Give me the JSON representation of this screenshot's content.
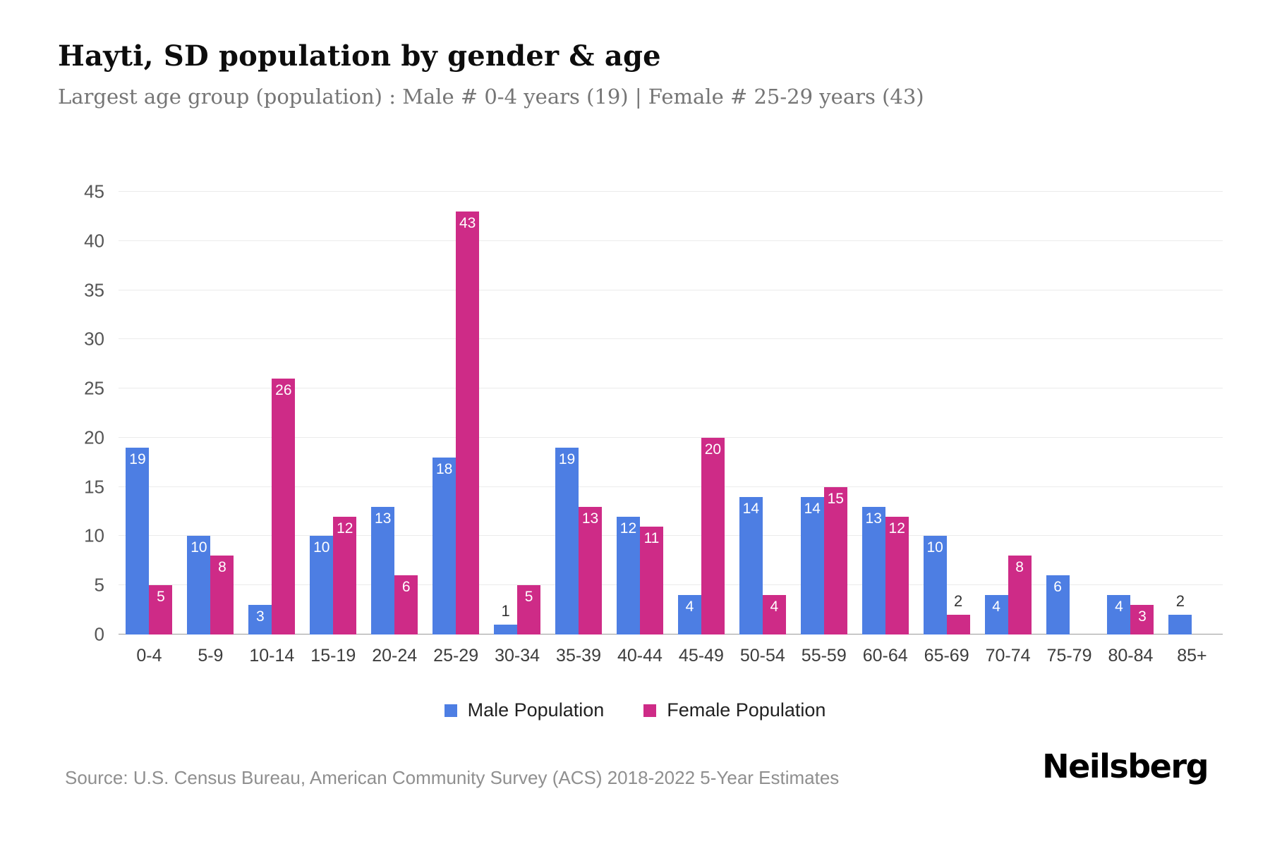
{
  "header": {
    "title": "Hayti, SD population by gender & age",
    "subtitle": "Largest age group (population) : Male # 0-4 years (19) | Female # 25-29 years (43)"
  },
  "chart_data": {
    "type": "bar",
    "title": "Hayti, SD population by gender & age",
    "categories": [
      "0-4",
      "5-9",
      "10-14",
      "15-19",
      "20-24",
      "25-29",
      "30-34",
      "35-39",
      "40-44",
      "45-49",
      "50-54",
      "55-59",
      "60-64",
      "65-69",
      "70-74",
      "75-79",
      "80-84",
      "85+"
    ],
    "series": [
      {
        "name": "Male Population",
        "color": "#4d7ee3",
        "values": [
          19,
          10,
          3,
          10,
          13,
          18,
          1,
          19,
          12,
          4,
          14,
          14,
          13,
          10,
          4,
          6,
          4,
          2
        ]
      },
      {
        "name": "Female Population",
        "color": "#ce2b87",
        "values": [
          5,
          8,
          26,
          12,
          6,
          43,
          5,
          13,
          11,
          20,
          4,
          15,
          12,
          2,
          8,
          0,
          3,
          0
        ]
      }
    ],
    "xlabel": "",
    "ylabel": "",
    "ylim": [
      0,
      45
    ],
    "ytick_step": 5,
    "grid": "horizontal",
    "legend_position": "bottom",
    "label_inside_min": 3
  },
  "footer": {
    "source": "Source: U.S. Census Bureau, American Community Survey (ACS) 2018-2022 5-Year Estimates",
    "brand": "Neilsberg"
  }
}
